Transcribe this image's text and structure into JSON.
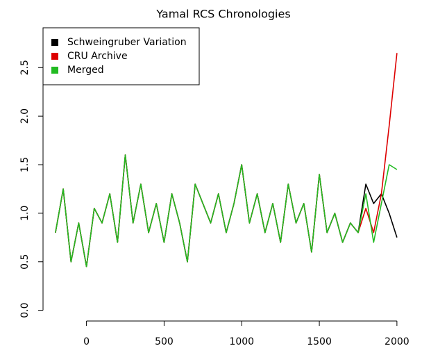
{
  "chart_data": {
    "type": "line",
    "title": "Yamal RCS Chronologies",
    "x": [
      -200,
      -150,
      -100,
      -50,
      0,
      50,
      100,
      150,
      200,
      250,
      300,
      350,
      400,
      450,
      500,
      550,
      600,
      650,
      700,
      750,
      800,
      850,
      900,
      950,
      1000,
      1050,
      1100,
      1150,
      1200,
      1250,
      1300,
      1350,
      1400,
      1450,
      1500,
      1550,
      1600,
      1650,
      1700,
      1750,
      1800,
      1850,
      1900,
      1950,
      2000
    ],
    "series": [
      {
        "name": "Schweingruber Variation",
        "color": "#000000",
        "values": [
          0.8,
          1.25,
          0.5,
          0.9,
          0.45,
          1.05,
          0.9,
          1.2,
          0.7,
          1.6,
          0.9,
          1.3,
          0.8,
          1.1,
          0.7,
          1.2,
          0.9,
          0.5,
          1.3,
          1.1,
          0.9,
          1.2,
          0.8,
          1.1,
          1.5,
          0.9,
          1.2,
          0.8,
          1.1,
          0.7,
          1.3,
          0.9,
          1.1,
          0.6,
          1.4,
          0.8,
          1.0,
          0.7,
          0.9,
          0.8,
          1.3,
          1.1,
          1.2,
          1.0,
          0.75
        ]
      },
      {
        "name": "CRU Archive",
        "color": "#dd0000",
        "values": [
          0.8,
          1.25,
          0.5,
          0.9,
          0.45,
          1.05,
          0.9,
          1.2,
          0.7,
          1.6,
          0.9,
          1.3,
          0.8,
          1.1,
          0.7,
          1.2,
          0.9,
          0.5,
          1.3,
          1.1,
          0.9,
          1.2,
          0.8,
          1.1,
          1.5,
          0.9,
          1.2,
          0.8,
          1.1,
          0.7,
          1.3,
          0.9,
          1.1,
          0.6,
          1.4,
          0.8,
          1.0,
          0.7,
          0.9,
          0.8,
          1.05,
          0.8,
          1.2,
          1.9,
          2.65
        ]
      },
      {
        "name": "Merged",
        "color": "#22bb22",
        "values": [
          0.8,
          1.25,
          0.5,
          0.9,
          0.45,
          1.05,
          0.9,
          1.2,
          0.7,
          1.6,
          0.9,
          1.3,
          0.8,
          1.1,
          0.7,
          1.2,
          0.9,
          0.5,
          1.3,
          1.1,
          0.9,
          1.2,
          0.8,
          1.1,
          1.5,
          0.9,
          1.2,
          0.8,
          1.1,
          0.7,
          1.3,
          0.9,
          1.1,
          0.6,
          1.4,
          0.8,
          1.0,
          0.7,
          0.9,
          0.8,
          1.2,
          0.7,
          1.1,
          1.5,
          1.45
        ]
      }
    ],
    "xlim": [
      -280,
      2090
    ],
    "ylim": [
      -0.11,
      2.91
    ],
    "xticks": [
      0,
      500,
      1000,
      1500,
      2000
    ],
    "yticks": [
      {
        "value": 0,
        "label": "0.0"
      },
      {
        "value": 0.5,
        "label": "0.5"
      },
      {
        "value": 1,
        "label": "1.0"
      },
      {
        "value": 1.5,
        "label": "1.5"
      },
      {
        "value": 2,
        "label": "2.0"
      },
      {
        "value": 2.5,
        "label": "2.5"
      }
    ],
    "legend": "top-left"
  }
}
